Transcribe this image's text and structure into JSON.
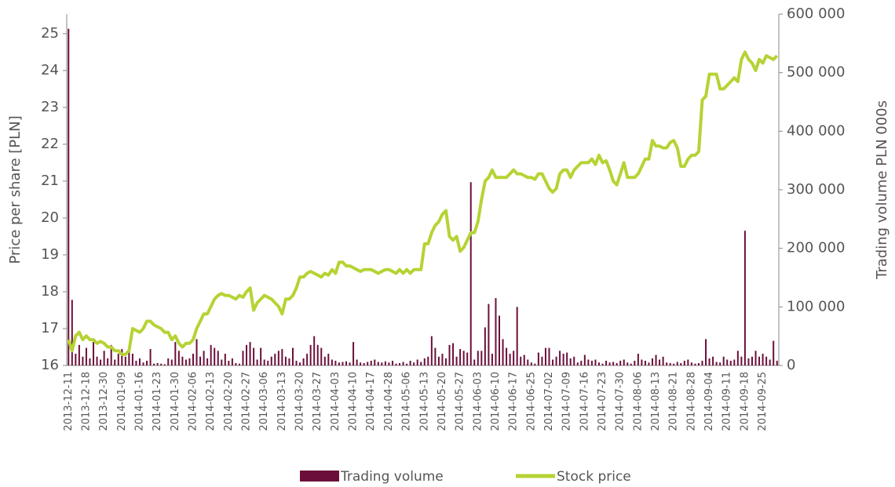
{
  "chart_data": {
    "type": "combo",
    "categories": [
      "2013-12-11",
      null,
      null,
      null,
      null,
      "2013-12-18",
      null,
      null,
      null,
      null,
      "2013-12-30",
      null,
      null,
      null,
      null,
      "2014-01-09",
      null,
      null,
      null,
      null,
      "2014-01-16",
      null,
      null,
      null,
      null,
      "2014-01-23",
      null,
      null,
      null,
      null,
      "2014-01-30",
      null,
      null,
      null,
      null,
      "2014-02-06",
      null,
      null,
      null,
      null,
      "2014-02-13",
      null,
      null,
      null,
      null,
      "2014-02-20",
      null,
      null,
      null,
      null,
      "2014-02-27",
      null,
      null,
      null,
      null,
      "2014-03-06",
      null,
      null,
      null,
      null,
      "2014-03-13",
      null,
      null,
      null,
      null,
      "2014-03-20",
      null,
      null,
      null,
      null,
      "2014-03-27",
      null,
      null,
      null,
      null,
      "2014-04-03",
      null,
      null,
      null,
      null,
      "2014-04-10",
      null,
      null,
      null,
      null,
      "2014-04-17",
      null,
      null,
      null,
      null,
      "2014-04-28",
      null,
      null,
      null,
      null,
      "2014-05-06",
      null,
      null,
      null,
      null,
      "2014-05-13",
      null,
      null,
      null,
      null,
      "2014-05-20",
      null,
      null,
      null,
      null,
      "2014-05-27",
      null,
      null,
      null,
      null,
      "2014-06-03",
      null,
      null,
      null,
      null,
      "2014-06-10",
      null,
      null,
      null,
      null,
      "2014-06-17",
      null,
      null,
      null,
      null,
      "2014-06-25",
      null,
      null,
      null,
      null,
      "2014-07-02",
      null,
      null,
      null,
      null,
      "2014-07-09",
      null,
      null,
      null,
      null,
      "2014-07-16",
      null,
      null,
      null,
      null,
      "2014-07-23",
      null,
      null,
      null,
      null,
      "2014-07-30",
      null,
      null,
      null,
      null,
      "2014-08-06",
      null,
      null,
      null,
      null,
      "2014-08-13",
      null,
      null,
      null,
      null,
      "2014-08-21",
      null,
      null,
      null,
      null,
      "2014-08-28",
      null,
      null,
      null,
      null,
      "2014-09-04",
      null,
      null,
      null,
      null,
      "2014-09-11",
      null,
      null,
      null,
      null,
      "2014-09-18",
      null,
      null,
      null,
      null,
      "2014-09-25",
      null,
      null,
      null,
      null
    ],
    "series": [
      {
        "name": "Trading volume",
        "color": "#6b0f3a",
        "type": "bar",
        "axis": "y2",
        "values": [
          575000,
          112000,
          20000,
          35000,
          15000,
          30000,
          12000,
          40000,
          15000,
          10000,
          25000,
          12000,
          35000,
          10000,
          20000,
          28000,
          15000,
          30000,
          20000,
          8000,
          12000,
          5000,
          8000,
          28000,
          3000,
          4000,
          3000,
          2000,
          12000,
          10000,
          40000,
          25000,
          15000,
          10000,
          12000,
          20000,
          45000,
          15000,
          25000,
          12000,
          35000,
          30000,
          25000,
          10000,
          20000,
          8000,
          12000,
          4000,
          3000,
          25000,
          35000,
          40000,
          30000,
          10000,
          30000,
          10000,
          8000,
          15000,
          20000,
          25000,
          28000,
          15000,
          12000,
          30000,
          8000,
          5000,
          12000,
          20000,
          35000,
          50000,
          35000,
          30000,
          15000,
          20000,
          10000,
          8000,
          5000,
          6000,
          7000,
          5000,
          40000,
          10000,
          5000,
          4000,
          6000,
          8000,
          10000,
          6000,
          5000,
          7000,
          5000,
          8000,
          3000,
          4000,
          6000,
          3000,
          8000,
          5000,
          10000,
          6000,
          12000,
          15000,
          50000,
          30000,
          15000,
          20000,
          12000,
          35000,
          38000,
          15000,
          28000,
          25000,
          22000,
          313000,
          10000,
          25000,
          25000,
          65000,
          105000,
          20000,
          115000,
          85000,
          45000,
          30000,
          20000,
          25000,
          100000,
          15000,
          18000,
          10000,
          5000,
          3000,
          22000,
          15000,
          30000,
          30000,
          10000,
          15000,
          25000,
          20000,
          22000,
          12000,
          15000,
          5000,
          8000,
          18000,
          10000,
          8000,
          10000,
          5000,
          3000,
          8000,
          5000,
          6000,
          4000,
          8000,
          10000,
          5000,
          3000,
          8000,
          20000,
          10000,
          8000,
          5000,
          12000,
          18000,
          10000,
          15000,
          5000,
          4000,
          3000,
          6000,
          4000,
          8000,
          10000,
          5000,
          3000,
          4000,
          8000,
          45000,
          12000,
          15000,
          6000,
          5000,
          15000,
          10000,
          8000,
          10000,
          25000,
          15000,
          230000,
          12000,
          15000,
          25000,
          15000,
          20000,
          15000,
          10000,
          42000,
          8000
        ]
      },
      {
        "name": "Stock price",
        "color": "#b5d334",
        "type": "line",
        "values": [
          16.7,
          16.4,
          16.8,
          16.9,
          16.7,
          16.8,
          16.7,
          16.7,
          16.6,
          16.65,
          16.6,
          16.5,
          16.5,
          16.4,
          16.4,
          16.3,
          16.3,
          16.4,
          17.0,
          16.95,
          16.9,
          17.0,
          17.2,
          17.2,
          17.1,
          17.05,
          17.0,
          16.9,
          16.9,
          16.7,
          16.8,
          16.6,
          16.5,
          16.6,
          16.6,
          16.7,
          17.0,
          17.2,
          17.4,
          17.4,
          17.6,
          17.8,
          17.9,
          17.95,
          17.9,
          17.9,
          17.85,
          17.8,
          17.9,
          17.85,
          18.0,
          18.1,
          17.5,
          17.7,
          17.8,
          17.9,
          17.85,
          17.8,
          17.7,
          17.6,
          17.4,
          17.8,
          17.8,
          17.9,
          18.1,
          18.4,
          18.4,
          18.5,
          18.55,
          18.5,
          18.45,
          18.4,
          18.5,
          18.45,
          18.6,
          18.5,
          18.8,
          18.8,
          18.7,
          18.7,
          18.65,
          18.6,
          18.55,
          18.6,
          18.6,
          18.6,
          18.55,
          18.5,
          18.55,
          18.6,
          18.6,
          18.55,
          18.5,
          18.6,
          18.5,
          18.6,
          18.5,
          18.6,
          18.6,
          18.6,
          19.3,
          19.3,
          19.6,
          19.8,
          19.9,
          20.1,
          20.2,
          19.5,
          19.4,
          19.5,
          19.1,
          19.2,
          19.4,
          19.6,
          19.6,
          19.9,
          20.5,
          21.0,
          21.1,
          21.3,
          21.1,
          21.1,
          21.1,
          21.1,
          21.2,
          21.3,
          21.2,
          21.2,
          21.15,
          21.1,
          21.1,
          21.05,
          21.2,
          21.2,
          21.0,
          20.8,
          20.7,
          20.8,
          21.2,
          21.3,
          21.3,
          21.1,
          21.3,
          21.4,
          21.5,
          21.5,
          21.5,
          21.6,
          21.45,
          21.7,
          21.5,
          21.55,
          21.3,
          21.0,
          20.9,
          21.2,
          21.5,
          21.1,
          21.1,
          21.1,
          21.2,
          21.4,
          21.6,
          21.6,
          22.1,
          21.95,
          21.95,
          21.9,
          21.9,
          22.05,
          22.1,
          21.9,
          21.4,
          21.4,
          21.6,
          21.7,
          21.7,
          21.8,
          23.2,
          23.3,
          23.9,
          23.9,
          23.9,
          23.5,
          23.5,
          23.6,
          23.7,
          23.8,
          23.7,
          24.3,
          24.5,
          24.3,
          24.2,
          24.0,
          24.3,
          24.2,
          24.4,
          24.35,
          24.3,
          24.4
        ]
      }
    ],
    "y_label": "Price per share [PLN]",
    "y2_label": "Trading volume  PLN 000s",
    "ylim": [
      16,
      25.53
    ],
    "yticks": [
      16,
      17,
      18,
      19,
      20,
      21,
      22,
      23,
      24,
      25
    ],
    "y2lim": [
      0,
      600000
    ],
    "y2ticks": [
      0,
      {
        "value": 100000,
        "label": "100 000"
      },
      {
        "value": 200000,
        "label": "200 000"
      },
      {
        "value": 300000,
        "label": "300 000"
      },
      {
        "value": 400000,
        "label": "400 000"
      },
      {
        "value": 500000,
        "label": "500 000"
      },
      {
        "value": 600000,
        "label": "600 000"
      }
    ],
    "legend": "bottom"
  }
}
